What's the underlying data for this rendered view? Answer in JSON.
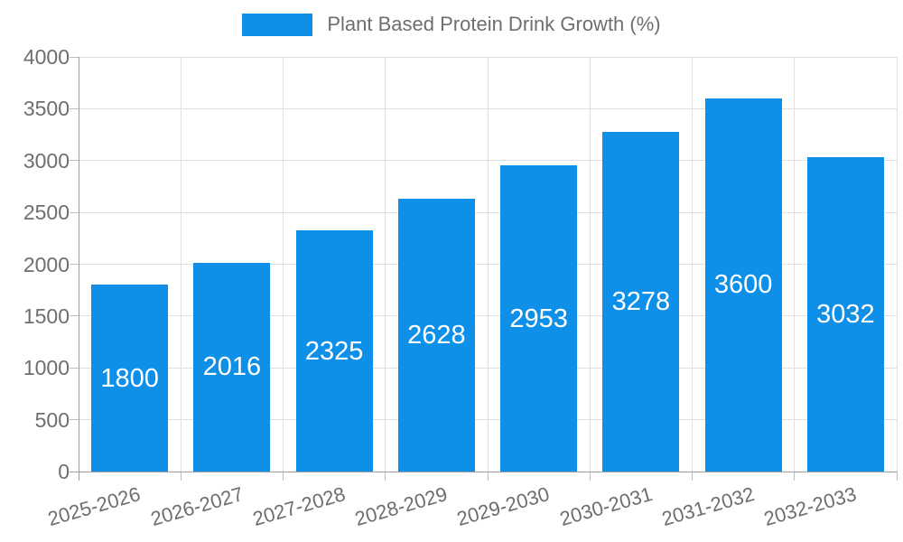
{
  "legend": {
    "label": "Plant Based Protein Drink Growth (%)"
  },
  "chart_data": {
    "type": "bar",
    "title": "Plant Based Protein Drink Growth (%)",
    "categories": [
      "2025-2026",
      "2026-2027",
      "2027-2028",
      "2028-2029",
      "2029-2030",
      "2030-2031",
      "2031-2032",
      "2032-2033"
    ],
    "values": [
      1800,
      2016,
      2325,
      2628,
      2953,
      3278,
      3600,
      3032
    ],
    "bar_labels": [
      "1800",
      "2016",
      "2325",
      "2628",
      "2953",
      "3278",
      "3600",
      "3032"
    ],
    "series": [
      {
        "name": "Plant Based Protein Drink Growth (%)",
        "values": [
          1800,
          2016,
          2325,
          2628,
          2953,
          3278,
          3600,
          3032
        ]
      }
    ],
    "xlabel": "",
    "ylabel": "",
    "ylim": [
      0,
      4000
    ],
    "ytick_values": [
      0,
      500,
      1000,
      1500,
      2000,
      2500,
      3000,
      3500,
      4000
    ],
    "ytick_labels": [
      "0",
      "500",
      "1000",
      "1500",
      "2000",
      "2500",
      "3000",
      "3500",
      "4000"
    ],
    "grid": true,
    "legend_position": "top-center",
    "colors": {
      "bar": "#0e90e9",
      "grid": "#e0e0e0",
      "axis": "#9e9e9e",
      "tick": "#bdbdbd",
      "axis_text": "#6e6e6e",
      "bar_label_text": "#ffffff",
      "background": "#ffffff"
    }
  }
}
